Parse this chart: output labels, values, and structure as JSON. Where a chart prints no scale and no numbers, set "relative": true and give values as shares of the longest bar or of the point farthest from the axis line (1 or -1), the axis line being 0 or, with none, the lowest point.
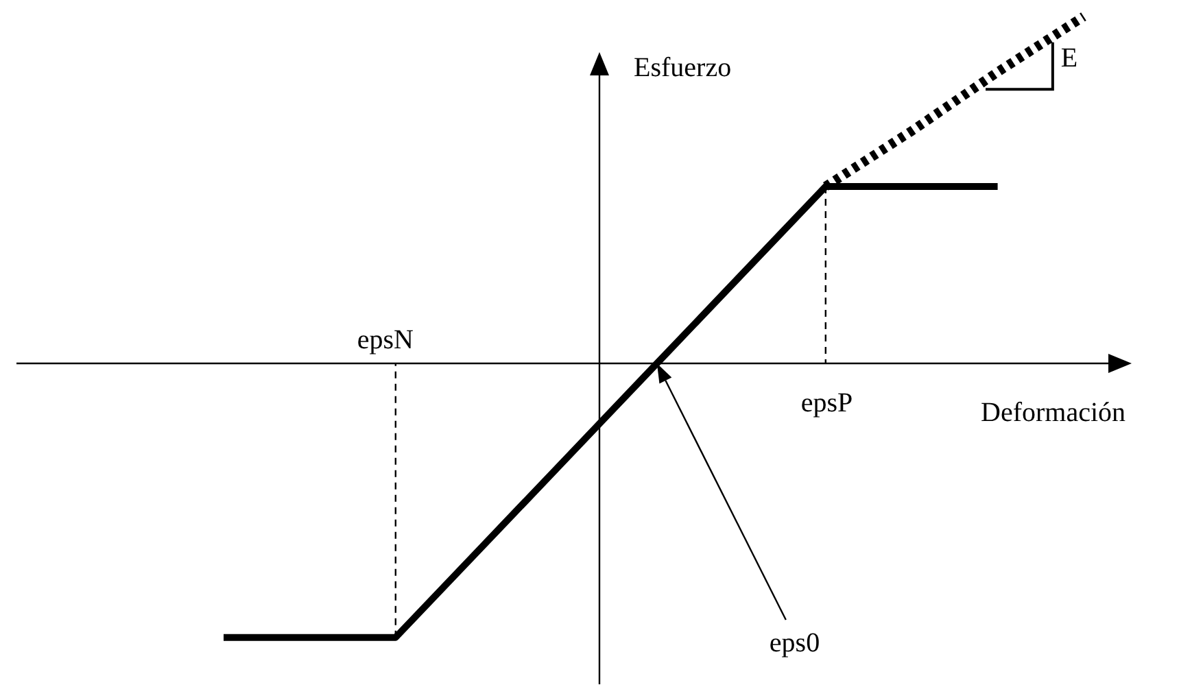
{
  "chart_data": {
    "type": "line",
    "relative": true,
    "xlabel": "Deformación",
    "ylabel": "Esfuerzo",
    "marker": "none",
    "categories": [
      null,
      null,
      null,
      null,
      null,
      null,
      null,
      null,
      null,
      null,
      null
    ],
    "series": [
      {
        "color": "#000000",
        "line_style": "solid",
        "values": [
          -0.79,
          -0.79,
          -0.79,
          -0.53,
          -0.27,
          -0.01,
          0.25,
          0.51,
          0.51,
          0.51,
          null
        ]
      },
      {
        "color": "#000000",
        "line_style": "dotted",
        "values": [
          null,
          null,
          null,
          null,
          null,
          null,
          null,
          0.51,
          0.67,
          0.84,
          1.0
        ]
      }
    ],
    "annotations": [
      "epsN",
      "epsP",
      "eps0",
      "E"
    ]
  }
}
